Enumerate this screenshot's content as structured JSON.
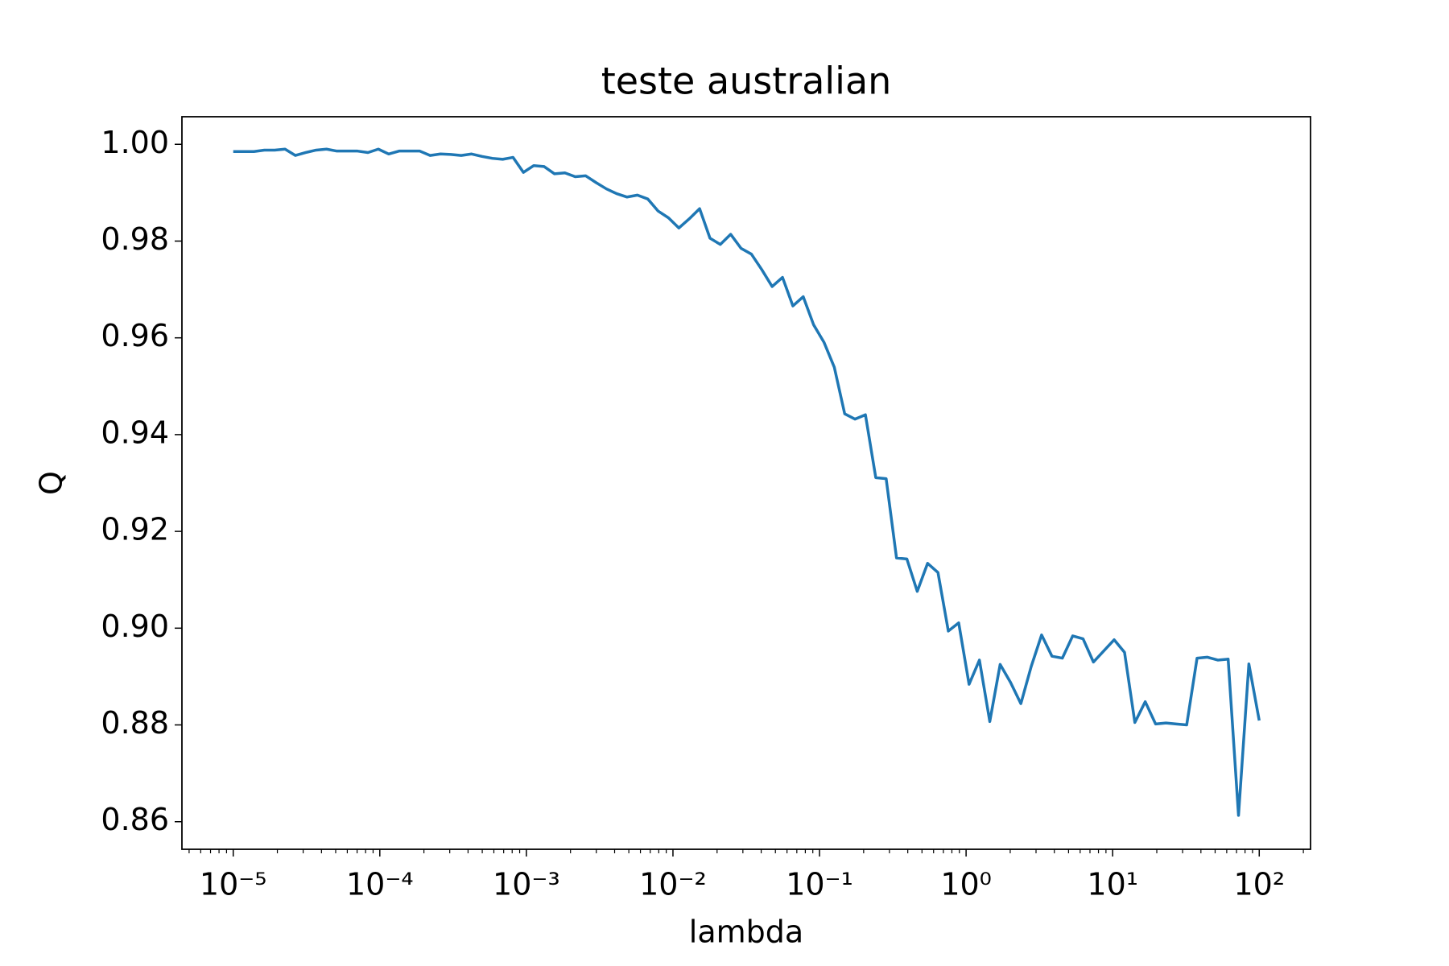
{
  "chart_data": {
    "type": "line",
    "title": "teste australian",
    "xlabel": "lambda",
    "ylabel": "Q",
    "xscale": "log",
    "color": "#1f77b4",
    "xlim": [
      4.4668e-06,
      223.87
    ],
    "ylim": [
      0.8543,
      1.0057
    ],
    "xticks": [
      {
        "value": 1e-05,
        "label": "10⁻⁵"
      },
      {
        "value": 0.0001,
        "label": "10⁻⁴"
      },
      {
        "value": 0.001,
        "label": "10⁻³"
      },
      {
        "value": 0.01,
        "label": "10⁻²"
      },
      {
        "value": 0.1,
        "label": "10⁻¹"
      },
      {
        "value": 1,
        "label": "10⁰"
      },
      {
        "value": 10,
        "label": "10¹"
      },
      {
        "value": 100,
        "label": "10²"
      }
    ],
    "yticks": [
      {
        "value": 0.86,
        "label": "0.86"
      },
      {
        "value": 0.88,
        "label": "0.88"
      },
      {
        "value": 0.9,
        "label": "0.90"
      },
      {
        "value": 0.92,
        "label": "0.92"
      },
      {
        "value": 0.94,
        "label": "0.94"
      },
      {
        "value": 0.96,
        "label": "0.96"
      },
      {
        "value": 0.98,
        "label": "0.98"
      },
      {
        "value": 1.0,
        "label": "1.00"
      }
    ],
    "x": [
      1e-05,
      1.177e-05,
      1.385e-05,
      1.63e-05,
      1.918e-05,
      2.257e-05,
      2.656e-05,
      3.126e-05,
      3.678e-05,
      4.329e-05,
      5.094e-05,
      5.995e-05,
      7.055e-05,
      8.302e-05,
      9.77e-05,
      0.000115,
      0.0001353,
      0.0001592,
      0.0001874,
      0.0002205,
      0.0002595,
      0.0003054,
      0.0003594,
      0.0004229,
      0.0004977,
      0.0005857,
      0.0006893,
      0.0008111,
      0.0009545,
      0.001123,
      0.001322,
      0.001556,
      0.001831,
      0.002154,
      0.002535,
      0.002984,
      0.003511,
      0.004132,
      0.004863,
      0.005722,
      0.006734,
      0.007925,
      0.009326,
      0.01098,
      0.01292,
      0.0152,
      0.01789,
      0.02105,
      0.02477,
      0.02915,
      0.0343,
      0.04037,
      0.04751,
      0.05591,
      0.06579,
      0.07743,
      0.09112,
      0.1072,
      0.1262,
      0.1485,
      0.1748,
      0.2057,
      0.242,
      0.2848,
      0.3352,
      0.3944,
      0.4642,
      0.5462,
      0.6428,
      0.7565,
      0.8902,
      1.048,
      1.233,
      1.451,
      1.707,
      2.009,
      2.364,
      2.783,
      3.275,
      3.854,
      4.535,
      5.337,
      6.28,
      7.391,
      8.697,
      10.24,
      12.05,
      14.17,
      16.68,
      19.63,
      23.1,
      27.19,
      31.99,
      37.65,
      44.31,
      52.14,
      61.36,
      72.21,
      84.98,
      100
    ],
    "values": [
      0.9985,
      0.9985,
      0.9985,
      0.9988,
      0.9988,
      0.999,
      0.9977,
      0.9983,
      0.9988,
      0.999,
      0.9986,
      0.9986,
      0.9986,
      0.9983,
      0.999,
      0.998,
      0.9986,
      0.9986,
      0.9986,
      0.9977,
      0.998,
      0.9979,
      0.9977,
      0.998,
      0.9975,
      0.9971,
      0.9969,
      0.9973,
      0.9942,
      0.9956,
      0.9954,
      0.9939,
      0.9941,
      0.9933,
      0.9935,
      0.9921,
      0.9908,
      0.9898,
      0.9891,
      0.9895,
      0.9887,
      0.9862,
      0.9848,
      0.9827,
      0.9846,
      0.9867,
      0.9806,
      0.9793,
      0.9814,
      0.9785,
      0.9773,
      0.9741,
      0.9706,
      0.9725,
      0.9666,
      0.9685,
      0.9627,
      0.9591,
      0.9539,
      0.9443,
      0.9432,
      0.9441,
      0.9311,
      0.9309,
      0.9145,
      0.9143,
      0.9076,
      0.9134,
      0.9115,
      0.8994,
      0.9011,
      0.8884,
      0.8934,
      0.8807,
      0.8925,
      0.8888,
      0.8844,
      0.8921,
      0.8986,
      0.8942,
      0.8938,
      0.8984,
      0.8978,
      0.893,
      0.8953,
      0.8976,
      0.895,
      0.8805,
      0.8848,
      0.8802,
      0.8804,
      0.8802,
      0.88,
      0.8938,
      0.894,
      0.8934,
      0.8936,
      0.8613,
      0.8926,
      0.8809
    ]
  }
}
